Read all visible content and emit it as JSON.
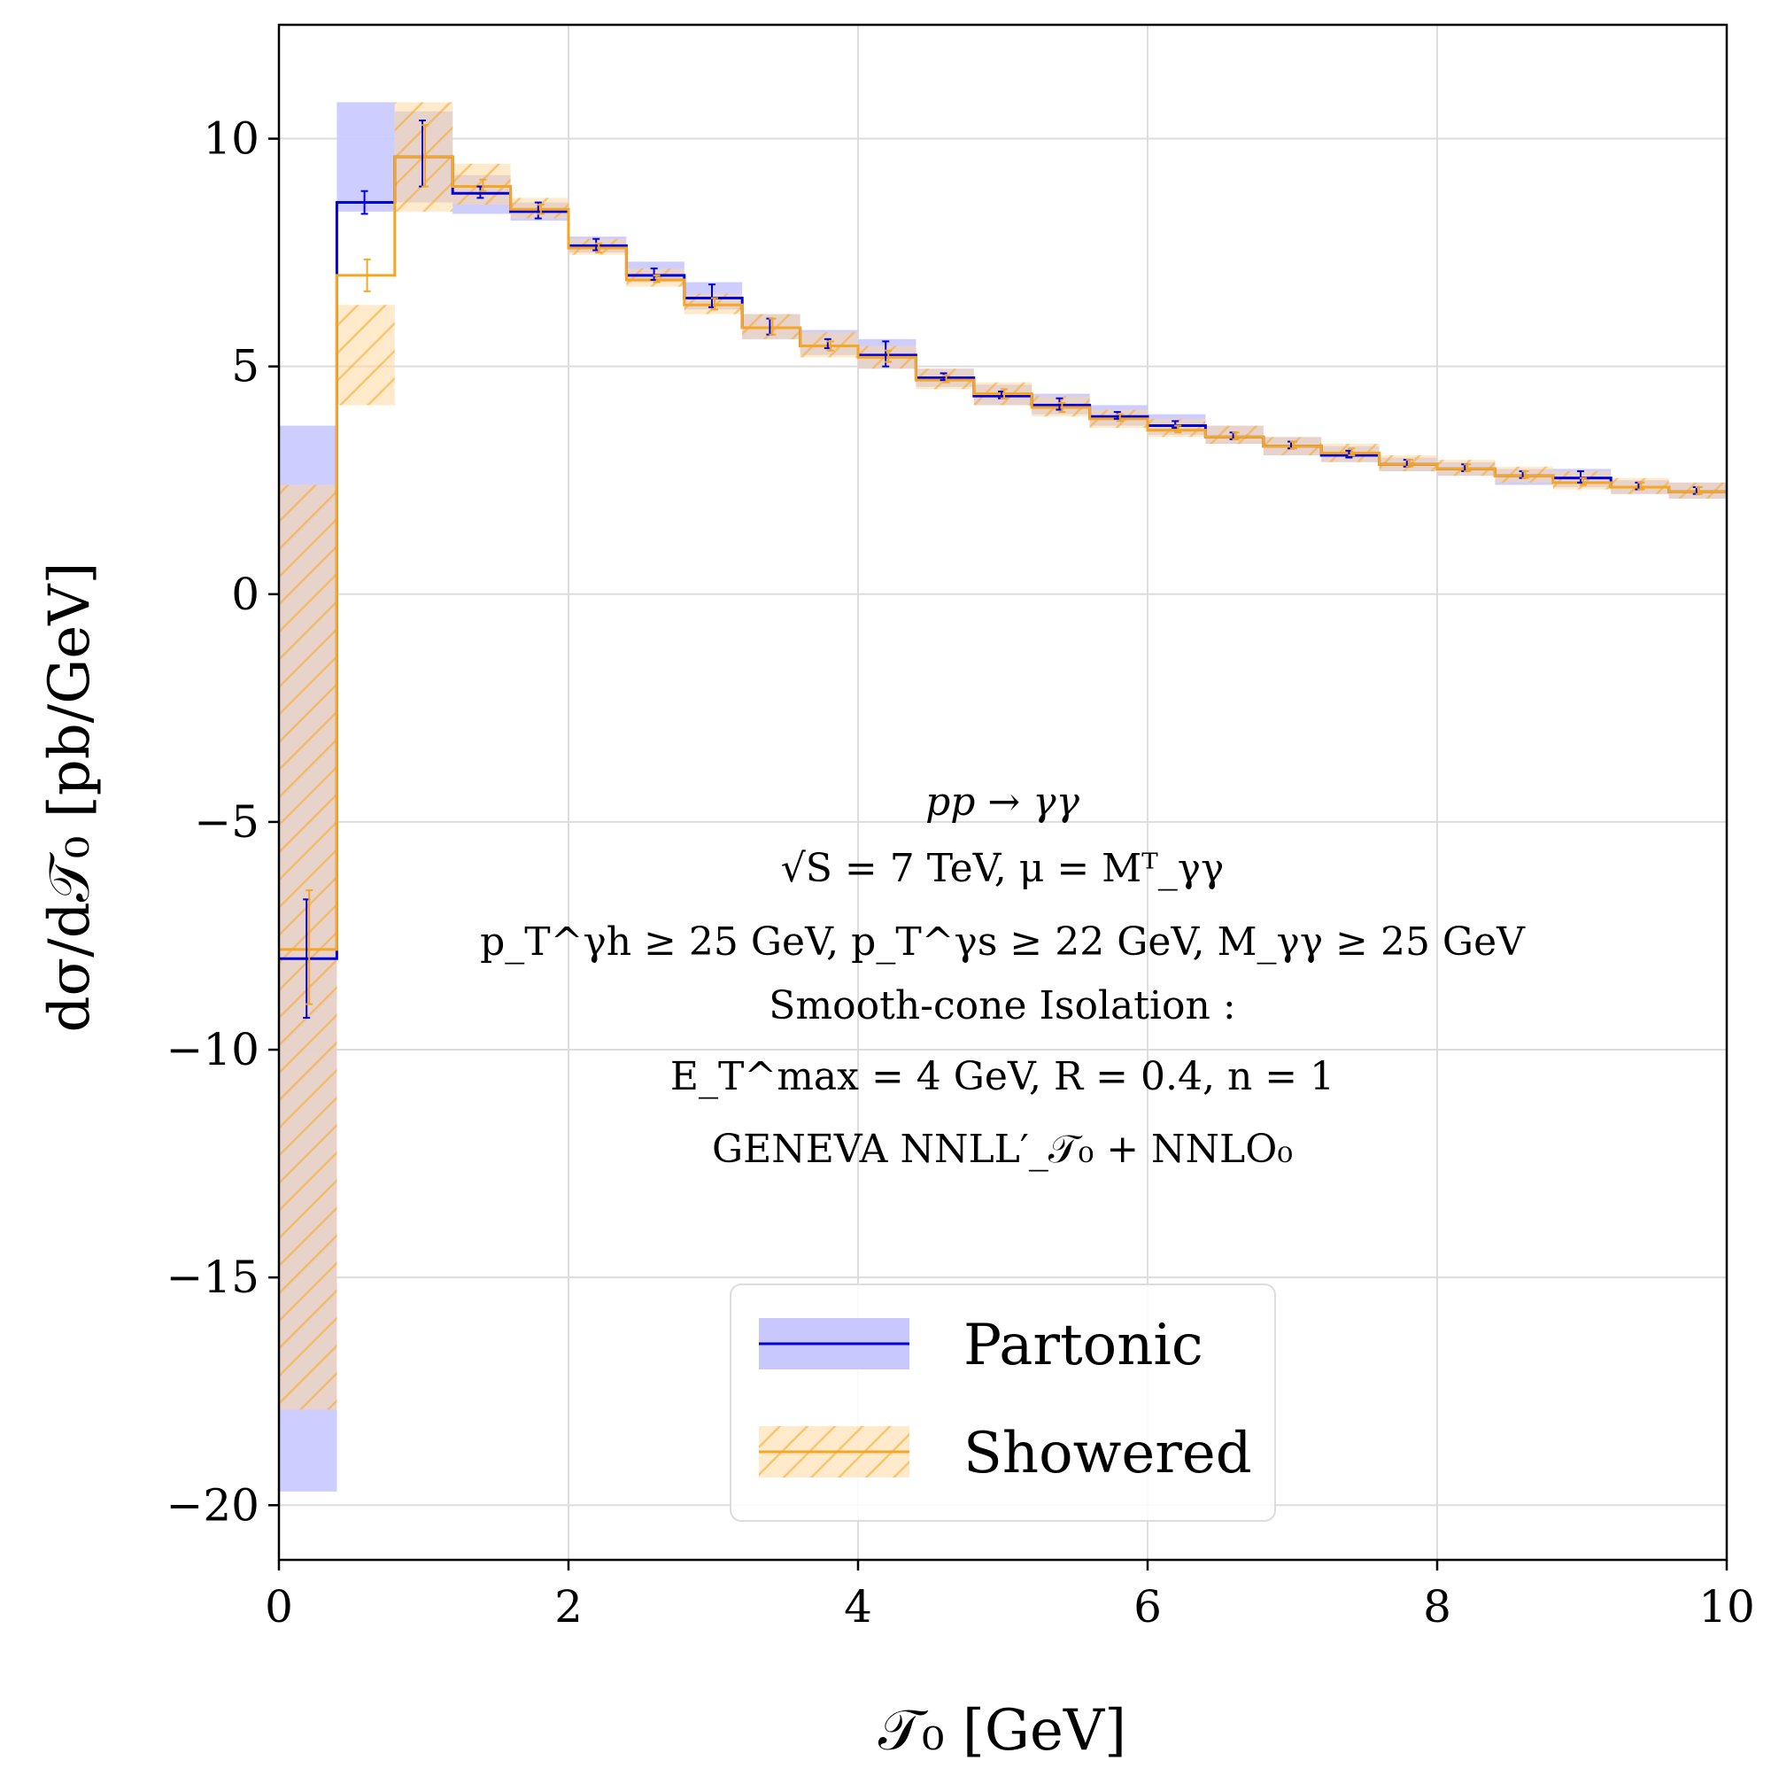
{
  "chart_data": {
    "type": "line",
    "drawstyle": "steps",
    "xlabel": "𝒯₀   [GeV]",
    "ylabel": "dσ/d𝒯₀   [pb/GeV]",
    "xlim": [
      0,
      10
    ],
    "ylim": [
      -21.2,
      12.5
    ],
    "xticks": [
      0,
      2,
      4,
      6,
      8,
      10
    ],
    "xtick_labels": [
      "0",
      "2",
      "4",
      "6",
      "8",
      "10"
    ],
    "yticks": [
      -20,
      -15,
      -10,
      -5,
      0,
      5,
      10
    ],
    "ytick_labels": [
      "−20",
      "−15",
      "−10",
      "−5",
      "0",
      "5",
      "10"
    ],
    "grid": true,
    "legend_position": "lower-right",
    "bin_edges": [
      0,
      0.4,
      0.8,
      1.2,
      1.6,
      2.0,
      2.4,
      2.8,
      3.2,
      3.6,
      4.0,
      4.4,
      4.8,
      5.2,
      5.6,
      6.0,
      6.4,
      6.8,
      7.2,
      7.6,
      8.0,
      8.4,
      8.8,
      9.2,
      9.6,
      10.0
    ],
    "series": [
      {
        "name": "Partonic",
        "color": "#0000dd",
        "band_color": "#c8c8ff",
        "values": [
          -8.0,
          8.6,
          9.6,
          8.8,
          8.4,
          7.65,
          7.0,
          6.5,
          5.85,
          5.45,
          5.25,
          4.75,
          4.35,
          4.15,
          3.9,
          3.7,
          3.45,
          3.25,
          3.05,
          2.85,
          2.75,
          2.6,
          2.55,
          2.35,
          2.25
        ],
        "band_low": [
          -19.7,
          8.4,
          8.6,
          8.35,
          8.2,
          7.5,
          6.85,
          6.25,
          5.6,
          5.25,
          4.95,
          4.55,
          4.15,
          3.95,
          3.7,
          3.5,
          3.3,
          3.05,
          2.9,
          2.7,
          2.6,
          2.4,
          2.35,
          2.2,
          2.1
        ],
        "band_high": [
          3.7,
          10.8,
          10.6,
          9.2,
          8.6,
          7.85,
          7.3,
          6.85,
          6.15,
          5.8,
          5.6,
          4.95,
          4.6,
          4.4,
          4.15,
          3.95,
          3.7,
          3.45,
          3.25,
          3.0,
          2.9,
          2.75,
          2.75,
          2.5,
          2.45
        ],
        "err_low": [
          -9.3,
          8.35,
          8.95,
          8.7,
          8.25,
          7.55,
          6.9,
          6.3,
          5.7,
          5.4,
          5.0,
          4.7,
          4.3,
          4.05,
          3.85,
          3.65,
          3.4,
          3.2,
          3.0,
          2.8,
          2.7,
          2.55,
          2.45,
          2.3,
          2.2
        ],
        "err_high": [
          -6.7,
          8.85,
          10.4,
          8.95,
          8.6,
          7.8,
          7.15,
          6.8,
          6.05,
          5.6,
          5.55,
          4.85,
          4.45,
          4.3,
          4.0,
          3.8,
          3.55,
          3.35,
          3.15,
          2.95,
          2.85,
          2.7,
          2.7,
          2.45,
          2.35
        ]
      },
      {
        "name": "Showered",
        "color": "#f5a623",
        "band_color": "#ffd9a0",
        "hatched": true,
        "values": [
          -7.8,
          7.0,
          9.6,
          8.95,
          8.45,
          7.6,
          6.9,
          6.35,
          5.85,
          5.45,
          5.2,
          4.7,
          4.4,
          4.1,
          3.85,
          3.6,
          3.45,
          3.25,
          3.1,
          2.85,
          2.75,
          2.6,
          2.45,
          2.35,
          2.25
        ],
        "band_low": [
          -17.9,
          4.15,
          8.4,
          8.55,
          8.25,
          7.45,
          6.75,
          6.15,
          5.6,
          5.2,
          4.95,
          4.5,
          4.15,
          3.9,
          3.65,
          3.45,
          3.3,
          3.05,
          2.9,
          2.7,
          2.6,
          2.45,
          2.3,
          2.2,
          2.1
        ],
        "band_high": [
          2.4,
          6.35,
          10.8,
          9.45,
          8.7,
          7.8,
          7.15,
          6.6,
          6.15,
          5.75,
          5.45,
          4.95,
          4.65,
          4.35,
          4.05,
          3.85,
          3.7,
          3.45,
          3.3,
          3.05,
          2.95,
          2.8,
          2.7,
          2.55,
          2.45
        ],
        "err_low": [
          -9.0,
          6.65,
          8.95,
          8.85,
          8.35,
          7.5,
          6.85,
          6.25,
          5.7,
          5.35,
          5.1,
          4.65,
          4.3,
          4.0,
          3.8,
          3.55,
          3.4,
          3.2,
          3.05,
          2.8,
          2.7,
          2.55,
          2.4,
          2.3,
          2.2
        ],
        "err_high": [
          -6.5,
          7.35,
          10.3,
          9.1,
          8.55,
          7.7,
          7.0,
          6.5,
          6.05,
          5.55,
          5.35,
          4.8,
          4.5,
          4.2,
          3.95,
          3.7,
          3.55,
          3.35,
          3.2,
          2.95,
          2.85,
          2.7,
          2.55,
          2.45,
          2.35
        ]
      }
    ],
    "annotations": [
      "pp → γγ",
      "√S = 7 TeV, μ = Mᵀ_γγ",
      "p_T^γh ≥ 25 GeV,  p_T^γs ≥ 22 GeV,  M_γγ ≥ 25 GeV",
      "Smooth-cone Isolation :",
      "E_T^max = 4 GeV,  R = 0.4,  n = 1",
      "GENEVA   NNLL′_𝒯₀ + NNLO₀"
    ]
  }
}
